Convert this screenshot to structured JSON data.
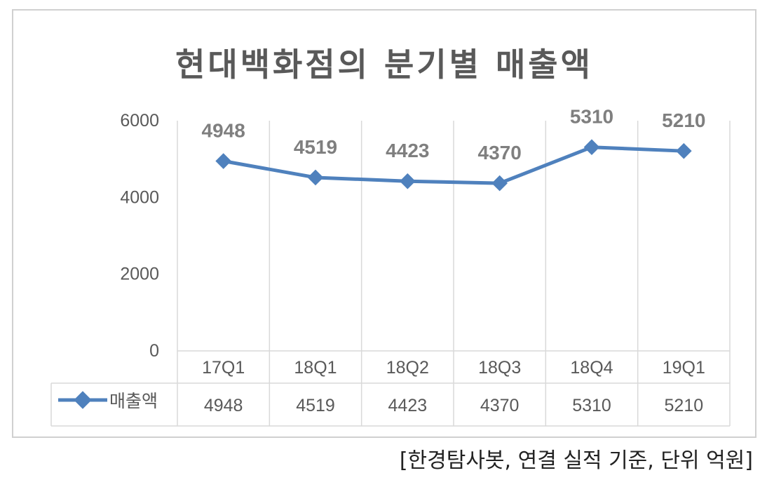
{
  "chart_data": {
    "type": "line",
    "title": "현대백화점의 분기별 매출액",
    "categories": [
      "17Q1",
      "18Q1",
      "18Q2",
      "18Q3",
      "18Q4",
      "19Q1"
    ],
    "series": [
      {
        "name": "매출액",
        "values": [
          4948,
          4519,
          4423,
          4370,
          5310,
          5210
        ],
        "color": "#4f81bd"
      }
    ],
    "ylim": [
      0,
      6000
    ],
    "yticks": [
      0,
      2000,
      4000,
      6000
    ],
    "grid": "vertical",
    "data_table": true,
    "data_labels": true
  },
  "source_note": "[한경탐사봇, 연결 실적 기준, 단위 억원]"
}
